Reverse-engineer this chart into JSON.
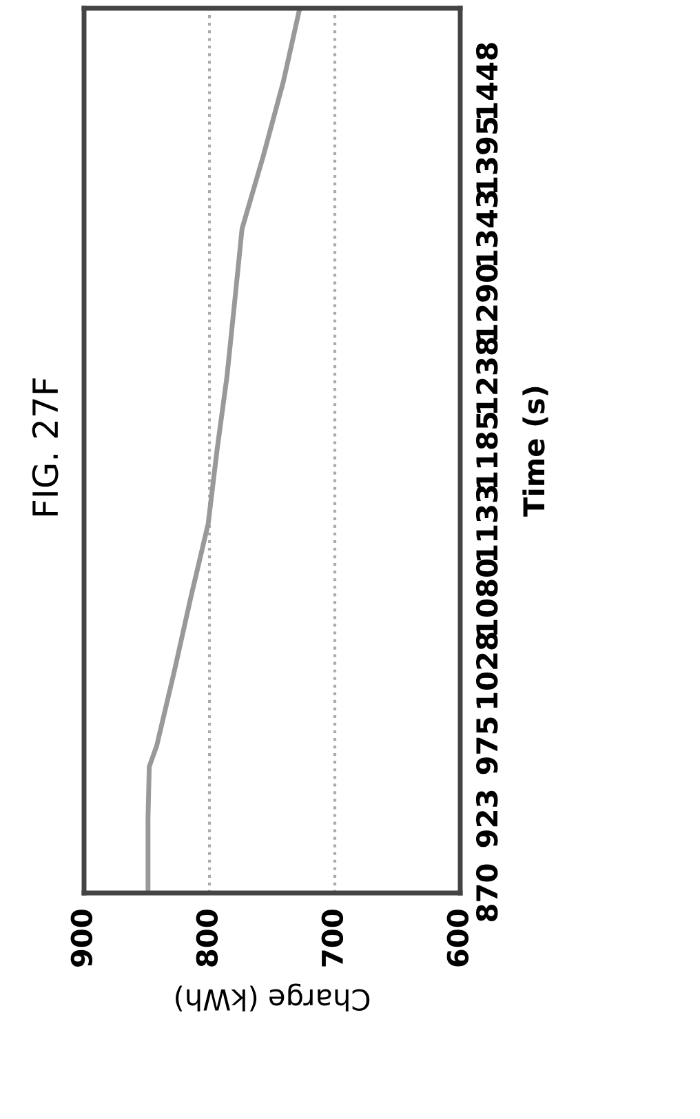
{
  "chart_data": {
    "type": "line",
    "title": "FIG. 27F",
    "xlabel": "Charge (kWh)",
    "ylabel": "Time (s)",
    "series": [
      {
        "color": "#999999",
        "x": [
          849,
          849,
          848,
          842,
          828,
          815,
          801,
          794,
          786,
          780,
          774,
          757,
          741,
          728
        ],
        "values": [
          870,
          923,
          960,
          975,
          1028,
          1080,
          1133,
          1185,
          1238,
          1290,
          1343,
          1395,
          1448,
          1500
        ]
      }
    ],
    "xlim": [
      900,
      600
    ],
    "xticks": [
      900,
      800,
      700,
      600
    ],
    "ylim": [
      870,
      1500
    ],
    "yticks": [
      870,
      923,
      975,
      1028,
      1080,
      1133,
      1185,
      1238,
      1290,
      1343,
      1395,
      1448
    ],
    "grid": "x",
    "line_style": "solid"
  }
}
